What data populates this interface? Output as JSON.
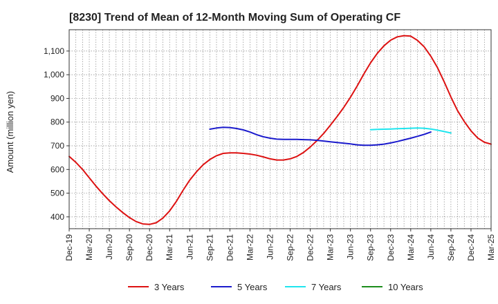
{
  "chart_data": {
    "type": "line",
    "title": "[8230]  Trend of Mean of 12-Month Moving Sum of Operating CF",
    "xlabel": "",
    "ylabel": "Amount (million yen)",
    "ylim": [
      350,
      1190
    ],
    "yticks": [
      400,
      500,
      600,
      700,
      800,
      900,
      1000,
      1100
    ],
    "ytick_labels": [
      "400",
      "500",
      "600",
      "700",
      "800",
      "900",
      "1,000",
      "1,100"
    ],
    "x_start": "Dec-19",
    "x_months": 63,
    "xtick_labels": [
      "Dec-19",
      "Mar-20",
      "Jun-20",
      "Sep-20",
      "Dec-20",
      "Mar-21",
      "Jun-21",
      "Sep-21",
      "Dec-21",
      "Mar-22",
      "Jun-22",
      "Sep-22",
      "Dec-22",
      "Mar-23",
      "Jun-23",
      "Sep-23",
      "Dec-23",
      "Mar-24",
      "Jun-24",
      "Sep-24",
      "Dec-24",
      "Mar-25"
    ],
    "grid": true,
    "legend_position": "bottom",
    "series": [
      {
        "name": "3 Years",
        "color": "#dd1111",
        "start_month": 0,
        "values": [
          655,
          630,
          600,
          565,
          530,
          498,
          468,
          442,
          418,
          397,
          380,
          370,
          368,
          375,
          395,
          425,
          465,
          512,
          555,
          590,
          620,
          642,
          658,
          668,
          670,
          670,
          668,
          665,
          660,
          653,
          645,
          640,
          640,
          645,
          655,
          672,
          695,
          722,
          752,
          787,
          823,
          862,
          905,
          952,
          1003,
          1050,
          1090,
          1122,
          1146,
          1160,
          1165,
          1163,
          1145,
          1118,
          1078,
          1030,
          970,
          906,
          848,
          802,
          763,
          733,
          715,
          707
        ]
      },
      {
        "name": "5 Years",
        "color": "#1a1acc",
        "start_month": 21,
        "values": [
          770,
          775,
          778,
          777,
          773,
          767,
          758,
          747,
          738,
          732,
          728,
          727,
          727,
          727,
          726,
          725,
          723,
          720,
          717,
          714,
          711,
          708,
          704,
          702,
          702,
          704,
          707,
          712,
          718,
          725,
          732,
          740,
          748,
          758
        ]
      },
      {
        "name": "7 Years",
        "color": "#1ee5ee",
        "start_month": 45,
        "values": [
          768,
          769,
          770,
          771,
          772,
          773,
          774,
          775,
          774,
          771,
          766,
          760,
          754
        ]
      },
      {
        "name": "10 Years",
        "color": "#1a8c1a",
        "start_month": 0,
        "values": []
      }
    ]
  }
}
